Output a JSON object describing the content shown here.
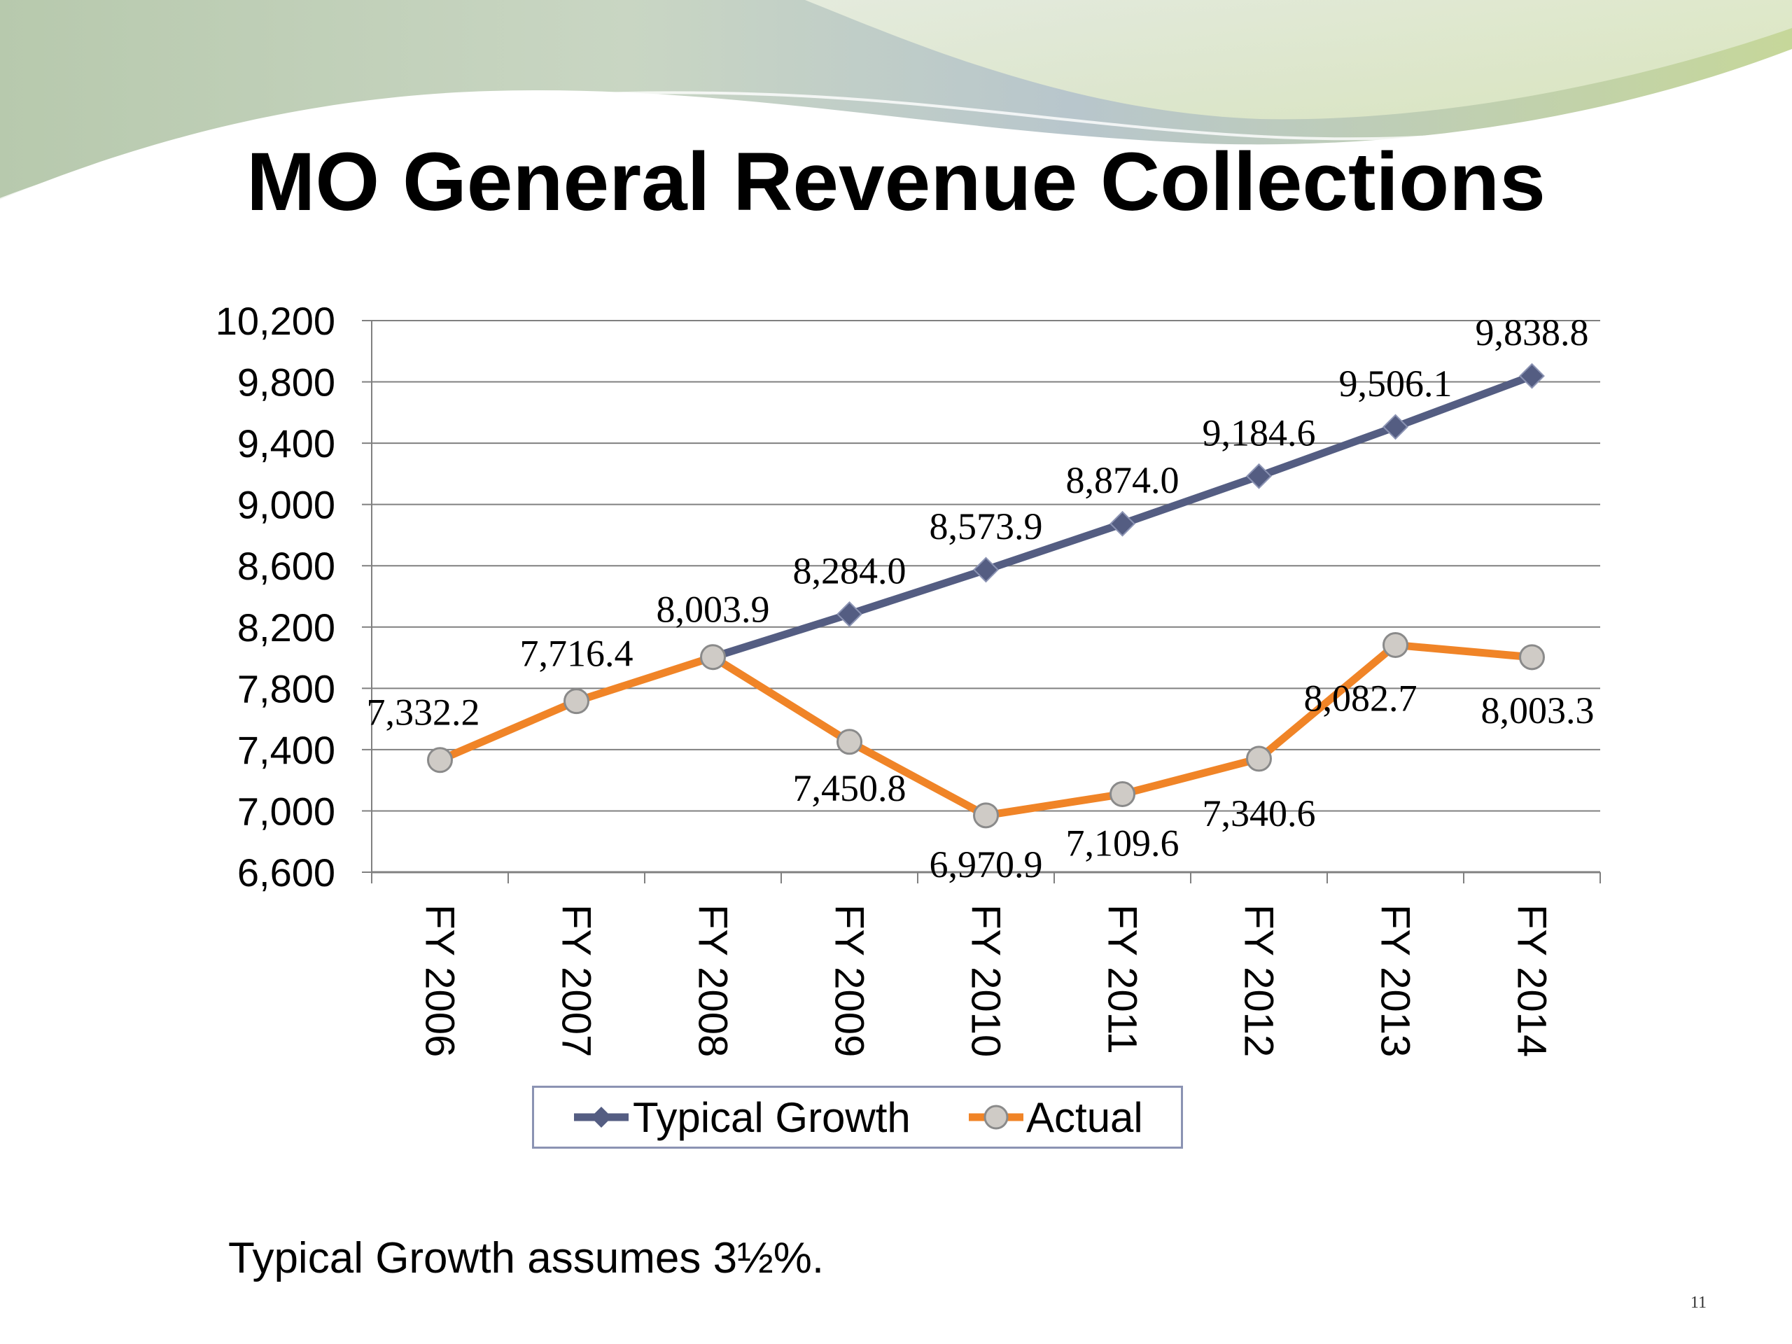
{
  "slide": {
    "title": "MO General Revenue Collections",
    "footnote": "Typical Growth assumes 3½%.",
    "page_number": "11"
  },
  "colors": {
    "typical_growth": "#545d82",
    "actual": "#f08427",
    "actual_marker_fill": "#cfcbc6",
    "actual_marker_stroke": "#8a8a8a",
    "gridline": "#808080"
  },
  "chart_data": {
    "type": "line",
    "title": "",
    "xlabel": "",
    "ylabel": "",
    "categories": [
      "FY 2006",
      "FY 2007",
      "FY 2008",
      "FY 2009",
      "FY 2010",
      "FY 2011",
      "FY 2012",
      "FY 2013",
      "FY 2014"
    ],
    "ylim": [
      6600,
      10200
    ],
    "yticks": [
      6600,
      7000,
      7400,
      7800,
      8200,
      8600,
      9000,
      9400,
      9800,
      10200
    ],
    "ytick_labels": [
      "6,600",
      "7,000",
      "7,400",
      "7,800",
      "8,200",
      "8,600",
      "9,000",
      "9,400",
      "9,800",
      "10,200"
    ],
    "grid": true,
    "legend_position": "bottom",
    "series": [
      {
        "name": "Typical Growth",
        "marker": "diamond",
        "values": [
          null,
          null,
          8003.9,
          8284.0,
          8573.9,
          8874.0,
          9184.6,
          9506.1,
          9838.8
        ],
        "labels": [
          null,
          null,
          null,
          "8,284.0",
          "8,573.9",
          "8,874.0",
          "9,184.6",
          "9,506.1",
          "9,838.8"
        ]
      },
      {
        "name": "Actual",
        "marker": "circle",
        "values": [
          7332.2,
          7716.4,
          8003.9,
          7450.8,
          6970.9,
          7109.6,
          7340.6,
          8082.7,
          8003.3
        ],
        "labels": [
          "7,332.2",
          "7,716.4",
          "8,003.9",
          "7,450.8",
          "6,970.9",
          "7,109.6",
          "7,340.6",
          "8,082.7",
          "8,003.3"
        ]
      }
    ]
  }
}
